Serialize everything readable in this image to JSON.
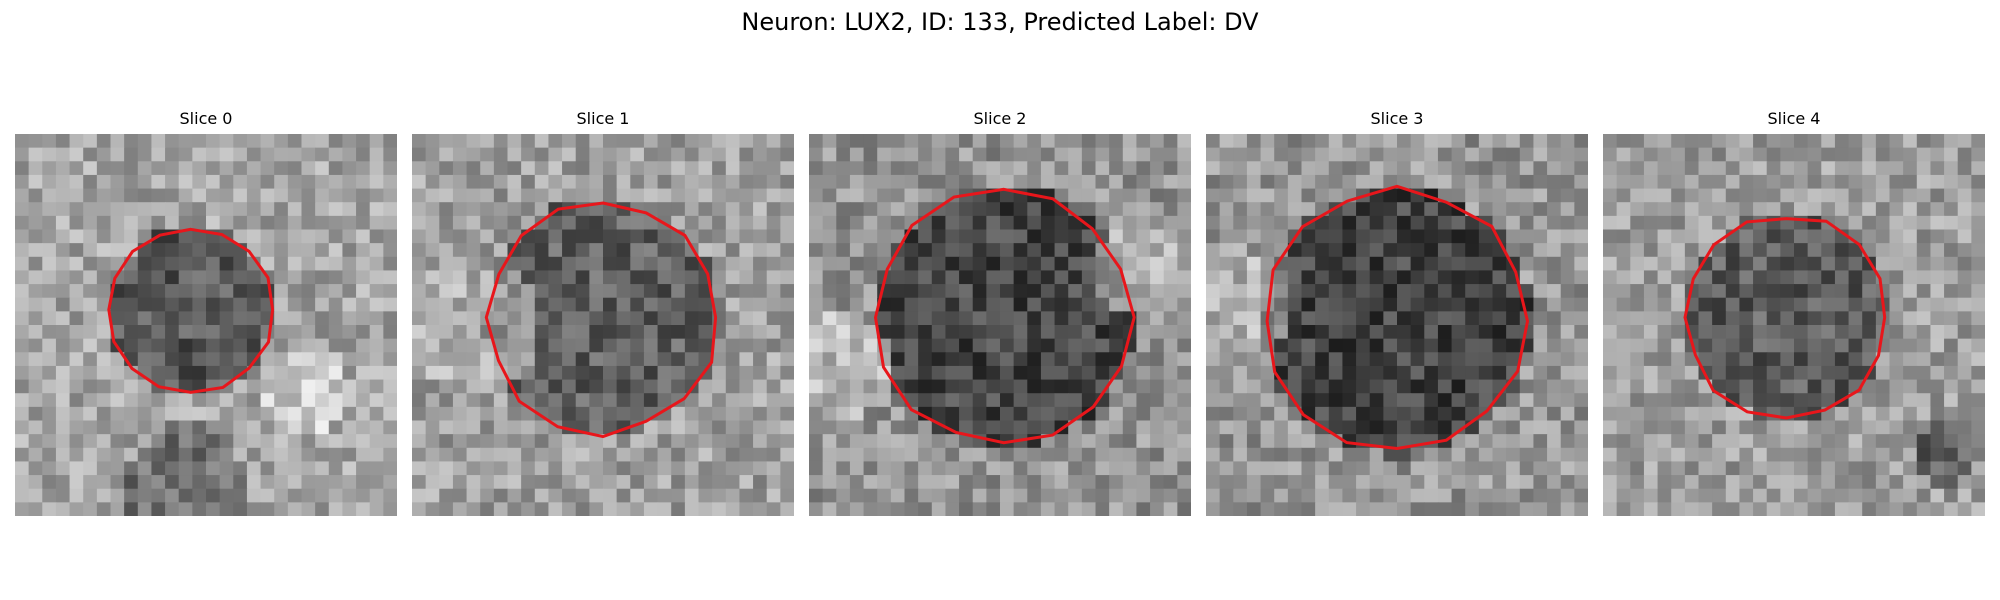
{
  "figure": {
    "title": "Neuron: LUX2, ID: 133, Predicted Label: DV",
    "overlay_color": "#e8161b",
    "colormap": "gray",
    "panels": [
      {
        "label": "Slice 0"
      },
      {
        "label": "Slice 1"
      },
      {
        "label": "Slice 2"
      },
      {
        "label": "Slice 3"
      },
      {
        "label": "Slice 4"
      }
    ]
  }
}
